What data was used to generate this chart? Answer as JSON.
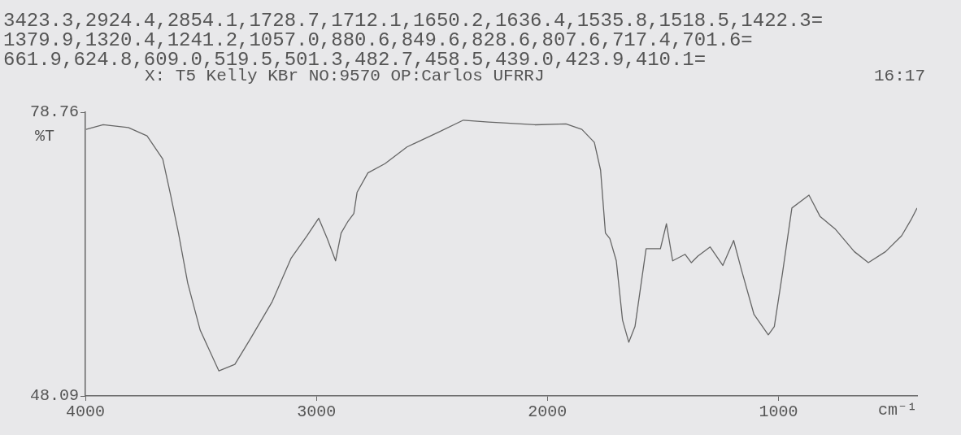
{
  "chart_data": {
    "type": "line",
    "ylabel": "%T",
    "xlabel": "cm⁻¹",
    "annotations": [
      "3423.3,2924.4,2854.1,1728.7,1712.1,1650.2,1636.4,1535.8,1518.5,1422.3=",
      "1379.9,1320.4,1241.2,1057.0,880.6,849.6,828.6,807.6,717.4,701.6=",
      "661.9,624.8,609.0,519.5,501.3,482.7,458.5,439.0,423.9,410.1=",
      "X: T5 Kelly KBr NO:9570 OP:Carlos UFRRJ",
      "16:17"
    ],
    "x": [
      3997,
      3923,
      3814,
      3733,
      3665,
      3631,
      3597,
      3557,
      3503,
      3422,
      3353,
      3285,
      3191,
      3109,
      3041,
      2990,
      2953,
      2917,
      2893,
      2865,
      2838,
      2824,
      2777,
      2703,
      2608,
      2472,
      2364,
      2255,
      2190,
      2054,
      1920,
      1851,
      1797,
      1770,
      1749,
      1730,
      1702,
      1675,
      1648,
      1621,
      1573,
      1511,
      1485,
      1458,
      1404,
      1377,
      1349,
      1296,
      1241,
      1194,
      1160,
      1106,
      1044,
      1018,
      983,
      942,
      868,
      820,
      753,
      672,
      611,
      536,
      467,
      427,
      400
    ],
    "series": [
      {
        "color": "#666666",
        "values": [
          76.9,
          77.4,
          77.1,
          76.2,
          73.7,
          69.8,
          65.7,
          60.3,
          55.2,
          50.8,
          51.5,
          54.3,
          58.3,
          63.0,
          65.4,
          67.3,
          65.1,
          62.7,
          65.7,
          66.9,
          67.8,
          70.1,
          72.2,
          73.2,
          75.0,
          76.6,
          77.9,
          77.7,
          77.6,
          77.4,
          77.5,
          76.9,
          75.5,
          72.5,
          65.7,
          65.1,
          62.7,
          56.3,
          53.9,
          55.6,
          64.0,
          64.0,
          66.7,
          62.7,
          63.4,
          62.5,
          63.2,
          64.2,
          62.2,
          64.9,
          61.7,
          56.9,
          54.7,
          55.6,
          61.3,
          68.4,
          69.8,
          67.5,
          66.1,
          63.7,
          62.5,
          63.7,
          65.4,
          67.1,
          68.4
        ]
      }
    ],
    "xlim": [
      4000,
      400
    ],
    "xticks": [
      4000,
      3000,
      2000,
      1000
    ],
    "ylim": [
      48.09,
      78.76
    ],
    "yticks": [
      48.09,
      78.76
    ],
    "grid": false,
    "legend": false,
    "marker": "none",
    "line_style": "solid"
  }
}
